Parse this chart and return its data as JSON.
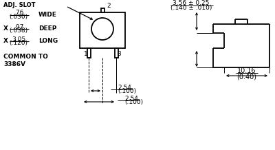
{
  "bg_color": "#ffffff",
  "line_color": "#000000",
  "text_color": "#000000",
  "figsize": [
    4.0,
    2.18
  ],
  "dpi": 100,
  "labels": {
    "adj_slot": "ADJ. SLOT",
    "wide_frac": ".76",
    "wide_paren": "(.030)",
    "wide_label": "WIDE",
    "deep_frac": ".97",
    "deep_paren": "(.038)",
    "deep_label": "DEEP",
    "long_frac": "3.05",
    "long_paren": "(.120)",
    "long_label": "LONG",
    "common": "COMMON TO\n3386V",
    "pin1": "1",
    "pin2": "2",
    "pin3": "3",
    "dim1_frac": "2.54",
    "dim1_paren": "(.100)",
    "dim2_frac": "2.54",
    "dim2_paren": "(.100)",
    "top_dim_frac": "3.56 ± 0.25",
    "top_dim_paren": "(.140 ± .010)",
    "side_dim_frac": "10.16",
    "side_dim_paren": "(0.40)",
    "x_label": "X"
  }
}
